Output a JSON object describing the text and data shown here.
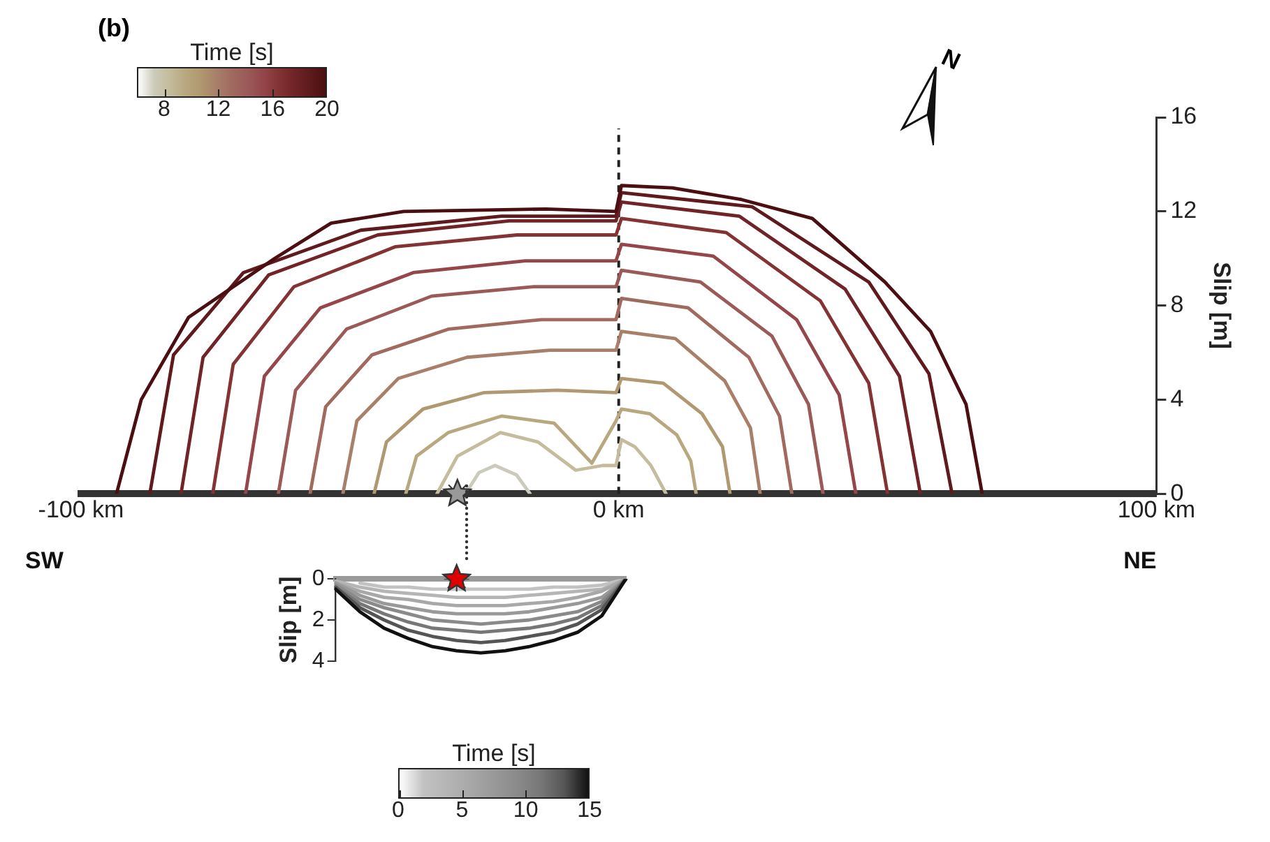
{
  "chart_data": [
    {
      "type": "line",
      "title": "(b)",
      "ylabel": "Slip [m]",
      "clabel": "Time [s]",
      "clim": [
        6,
        20
      ],
      "cticks": [
        8,
        12,
        16,
        20
      ],
      "xlim": [
        -100,
        100
      ],
      "xticks": [
        {
          "value": -100,
          "label": "-100 km"
        },
        {
          "value": 0,
          "label": "0 km"
        },
        {
          "value": 100,
          "label": "100 km"
        }
      ],
      "ylim": [
        0,
        16
      ],
      "yticks": [
        0,
        4,
        8,
        12,
        16
      ],
      "legend": false,
      "marker": "none",
      "annotations": [
        "SW",
        "NE",
        "N"
      ],
      "ref_lines": [
        {
          "axis": "x",
          "value": 0,
          "color": "#222222",
          "line_style": "dashed"
        }
      ],
      "series": [
        {
          "color": "#4b0f12",
          "x": [
            -93.4,
            -88.8,
            -80,
            -64,
            -53.5,
            -40,
            -13.5,
            -0.5,
            0.5,
            10,
            22.9,
            36,
            49.5,
            58,
            64.6,
            67.6
          ],
          "values": [
            0,
            4.0,
            7.5,
            10.0,
            11.5,
            12.0,
            12.1,
            12.0,
            13.1,
            13.0,
            12.5,
            11.7,
            9.0,
            6.9,
            3.8,
            0
          ]
        },
        {
          "color": "#5e1a1c",
          "x": [
            -87.2,
            -82.8,
            -69.8,
            -48,
            -21.8,
            -0.5,
            0.5,
            24.8,
            46.5,
            57.7,
            62.0
          ],
          "values": [
            0,
            5.9,
            9.4,
            11.2,
            11.8,
            11.8,
            12.8,
            12.2,
            9.0,
            5.1,
            0
          ]
        },
        {
          "color": "#702427",
          "x": [
            -81.4,
            -77.3,
            -65.1,
            -44.8,
            -20.4,
            -0.5,
            0.5,
            22.4,
            42.1,
            52.2,
            56.1
          ],
          "values": [
            0,
            5.8,
            9.3,
            11.0,
            11.6,
            11.6,
            12.4,
            11.8,
            8.7,
            5.0,
            0
          ]
        },
        {
          "color": "#833333",
          "x": [
            -75.5,
            -71.7,
            -60.4,
            -41.5,
            -18.9,
            -0.5,
            0.5,
            20.0,
            37.5,
            46.5,
            50.0
          ],
          "values": [
            0,
            5.5,
            8.8,
            10.5,
            11.0,
            11.0,
            11.7,
            11.1,
            8.2,
            4.7,
            0
          ]
        },
        {
          "color": "#94464a",
          "x": [
            -69.4,
            -65.9,
            -55.5,
            -38.2,
            -17.4,
            -0.5,
            0.5,
            17.6,
            33.1,
            41.0,
            44.1
          ],
          "values": [
            0,
            5.0,
            7.9,
            9.4,
            9.9,
            9.9,
            10.6,
            10.1,
            7.4,
            4.2,
            0
          ]
        },
        {
          "color": "#9a5a58",
          "x": [
            -63.3,
            -60.1,
            -50.6,
            -34.8,
            -15.8,
            -0.5,
            0.5,
            15.2,
            28.5,
            35.3,
            38.0
          ],
          "values": [
            0,
            4.4,
            7.0,
            8.4,
            8.8,
            8.8,
            9.5,
            9.0,
            6.7,
            3.8,
            0
          ]
        },
        {
          "color": "#a06a5f",
          "x": [
            -57.4,
            -54.5,
            -45.9,
            -31.6,
            -14.4,
            -0.5,
            0.5,
            12.9,
            24.2,
            29.9,
            32.2
          ],
          "values": [
            0,
            3.7,
            5.9,
            7.0,
            7.4,
            7.4,
            8.3,
            7.9,
            5.8,
            3.3,
            0
          ]
        },
        {
          "color": "#a8806a",
          "x": [
            -51.3,
            -48.7,
            -41.0,
            -28.2,
            -12.8,
            -0.5,
            0.5,
            10.5,
            19.7,
            24.5,
            26.3
          ],
          "values": [
            0,
            3.1,
            4.9,
            5.8,
            6.1,
            6.1,
            6.9,
            6.6,
            4.8,
            2.8,
            0
          ]
        },
        {
          "color": "#b09870",
          "x": [
            -45.5,
            -43.2,
            -36.4,
            -25.0,
            -11.4,
            -0.5,
            0.5,
            8.3,
            15.5,
            19.3,
            20.7
          ],
          "values": [
            0,
            2.2,
            3.6,
            4.3,
            4.4,
            4.3,
            4.9,
            4.7,
            3.4,
            2.0,
            0
          ]
        },
        {
          "color": "#b8a880",
          "x": [
            -39.6,
            -37.6,
            -31.7,
            -21.8,
            -12,
            -5,
            -0.5,
            0.5,
            5.8,
            10.8,
            13.4,
            14.4
          ],
          "values": [
            0,
            1.6,
            2.6,
            3.3,
            3.0,
            1.3,
            3.1,
            3.6,
            3.4,
            2.5,
            1.4,
            0
          ]
        },
        {
          "color": "#c4bc9c",
          "x": [
            -33.8,
            -30,
            -22,
            -15,
            -8,
            -3,
            -0.5,
            0.5,
            3,
            6,
            8.8
          ],
          "values": [
            0,
            1.6,
            2.6,
            2.2,
            1.0,
            1.2,
            1.2,
            2.3,
            2.0,
            1.2,
            0
          ]
        },
        {
          "color": "#cccbbb",
          "x": [
            -28.5,
            -26,
            -23,
            -19,
            -16.5
          ],
          "values": [
            0,
            0.9,
            1.2,
            0.8,
            0
          ]
        },
        {
          "type": "scatter",
          "marker": "star",
          "color": "#999999",
          "x": [
            -30
          ],
          "values": [
            0
          ]
        }
      ]
    },
    {
      "type": "line",
      "ylabel": "Slip [m]",
      "clabel": "Time [s]",
      "clim": [
        0,
        15
      ],
      "cticks": [
        0,
        5,
        10,
        15
      ],
      "categories": [
        null,
        null,
        null,
        null,
        null,
        null,
        null,
        null,
        null,
        null,
        null,
        null,
        null
      ],
      "ylim": [
        4,
        0
      ],
      "yticks": [
        0,
        2,
        4
      ],
      "tick_labels": "y",
      "legend": false,
      "marker": "none",
      "series": [
        {
          "color": "#111111",
          "values": [
            0.5,
            1.6,
            2.4,
            2.9,
            3.3,
            3.5,
            3.6,
            3.5,
            3.3,
            3.0,
            2.6,
            1.8,
            0
          ]
        },
        {
          "color": "#555555",
          "values": [
            0.4,
            1.4,
            2.0,
            2.5,
            2.8,
            3.0,
            3.1,
            3.0,
            2.8,
            2.6,
            2.2,
            1.5,
            0
          ]
        },
        {
          "color": "#777777",
          "values": [
            0.4,
            1.2,
            1.7,
            2.1,
            2.4,
            2.5,
            2.6,
            2.5,
            2.4,
            2.2,
            1.9,
            1.3,
            0
          ]
        },
        {
          "color": "#8a8a8a",
          "values": [
            0.3,
            1.0,
            1.4,
            1.7,
            2.0,
            2.1,
            2.2,
            2.1,
            2.0,
            1.8,
            1.6,
            1.1,
            0
          ]
        },
        {
          "color": "#999999",
          "values": [
            0.2,
            0.8,
            1.2,
            1.4,
            1.6,
            1.7,
            1.7,
            1.7,
            1.6,
            1.4,
            1.2,
            0.9,
            0
          ]
        },
        {
          "color": "#a8a8a8",
          "values": [
            0.2,
            0.6,
            0.9,
            1.0,
            1.2,
            1.3,
            1.3,
            1.3,
            1.2,
            1.1,
            0.9,
            0.6,
            0
          ]
        },
        {
          "color": "#b5b5b5",
          "values": [
            0.1,
            0.4,
            0.6,
            0.7,
            0.8,
            0.9,
            0.9,
            0.9,
            0.8,
            0.7,
            0.6,
            0.5,
            0
          ]
        },
        {
          "color": "#c2c2c2",
          "values": [
            null,
            0.2,
            0.4,
            0.4,
            0.5,
            0.5,
            0.5,
            0.5,
            0.5,
            0.4,
            0.4,
            0.3,
            0
          ]
        },
        {
          "type": "scatter",
          "marker": "star",
          "color": "#e00000",
          "values": [
            null,
            null,
            null,
            null,
            null,
            0,
            null,
            null,
            null,
            null,
            null,
            null,
            null
          ]
        }
      ]
    }
  ]
}
